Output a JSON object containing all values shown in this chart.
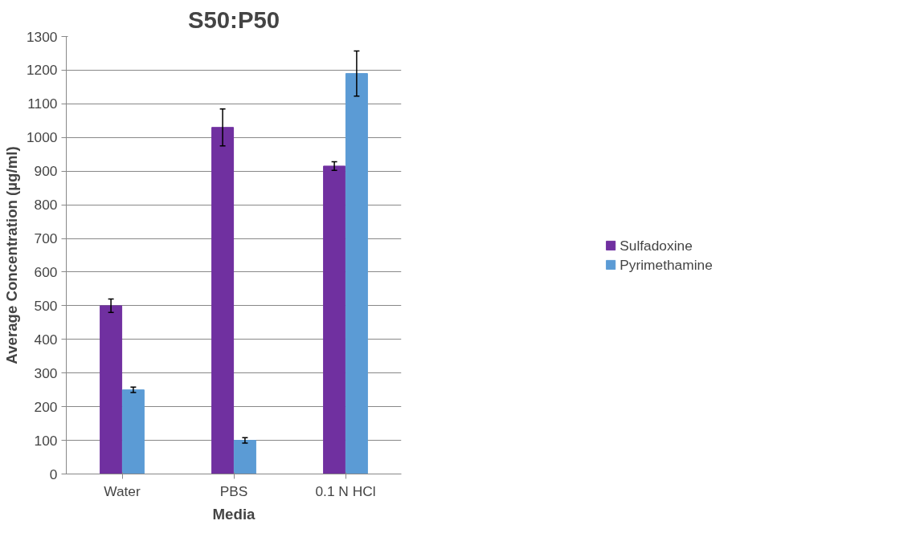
{
  "chart_data": {
    "type": "bar",
    "title": "S50:P50",
    "xlabel": "Media",
    "ylabel": "Average Concentration (µg/ml)",
    "categories": [
      "Water",
      "PBS",
      "0.1 N HCl"
    ],
    "series": [
      {
        "name": "Sulfadoxine",
        "color": "#7030a0",
        "values": [
          500,
          1030,
          915
        ],
        "errors": [
          20,
          55,
          13
        ]
      },
      {
        "name": "Pyrimethamine",
        "color": "#5b9bd5",
        "values": [
          250,
          100,
          1190
        ],
        "errors": [
          8,
          8,
          67
        ]
      }
    ],
    "ylim": [
      0,
      1300
    ],
    "yticks": [
      0,
      100,
      200,
      300,
      400,
      500,
      600,
      700,
      800,
      900,
      1000,
      1100,
      1200,
      1300
    ],
    "grid": "y",
    "legend": "right"
  }
}
